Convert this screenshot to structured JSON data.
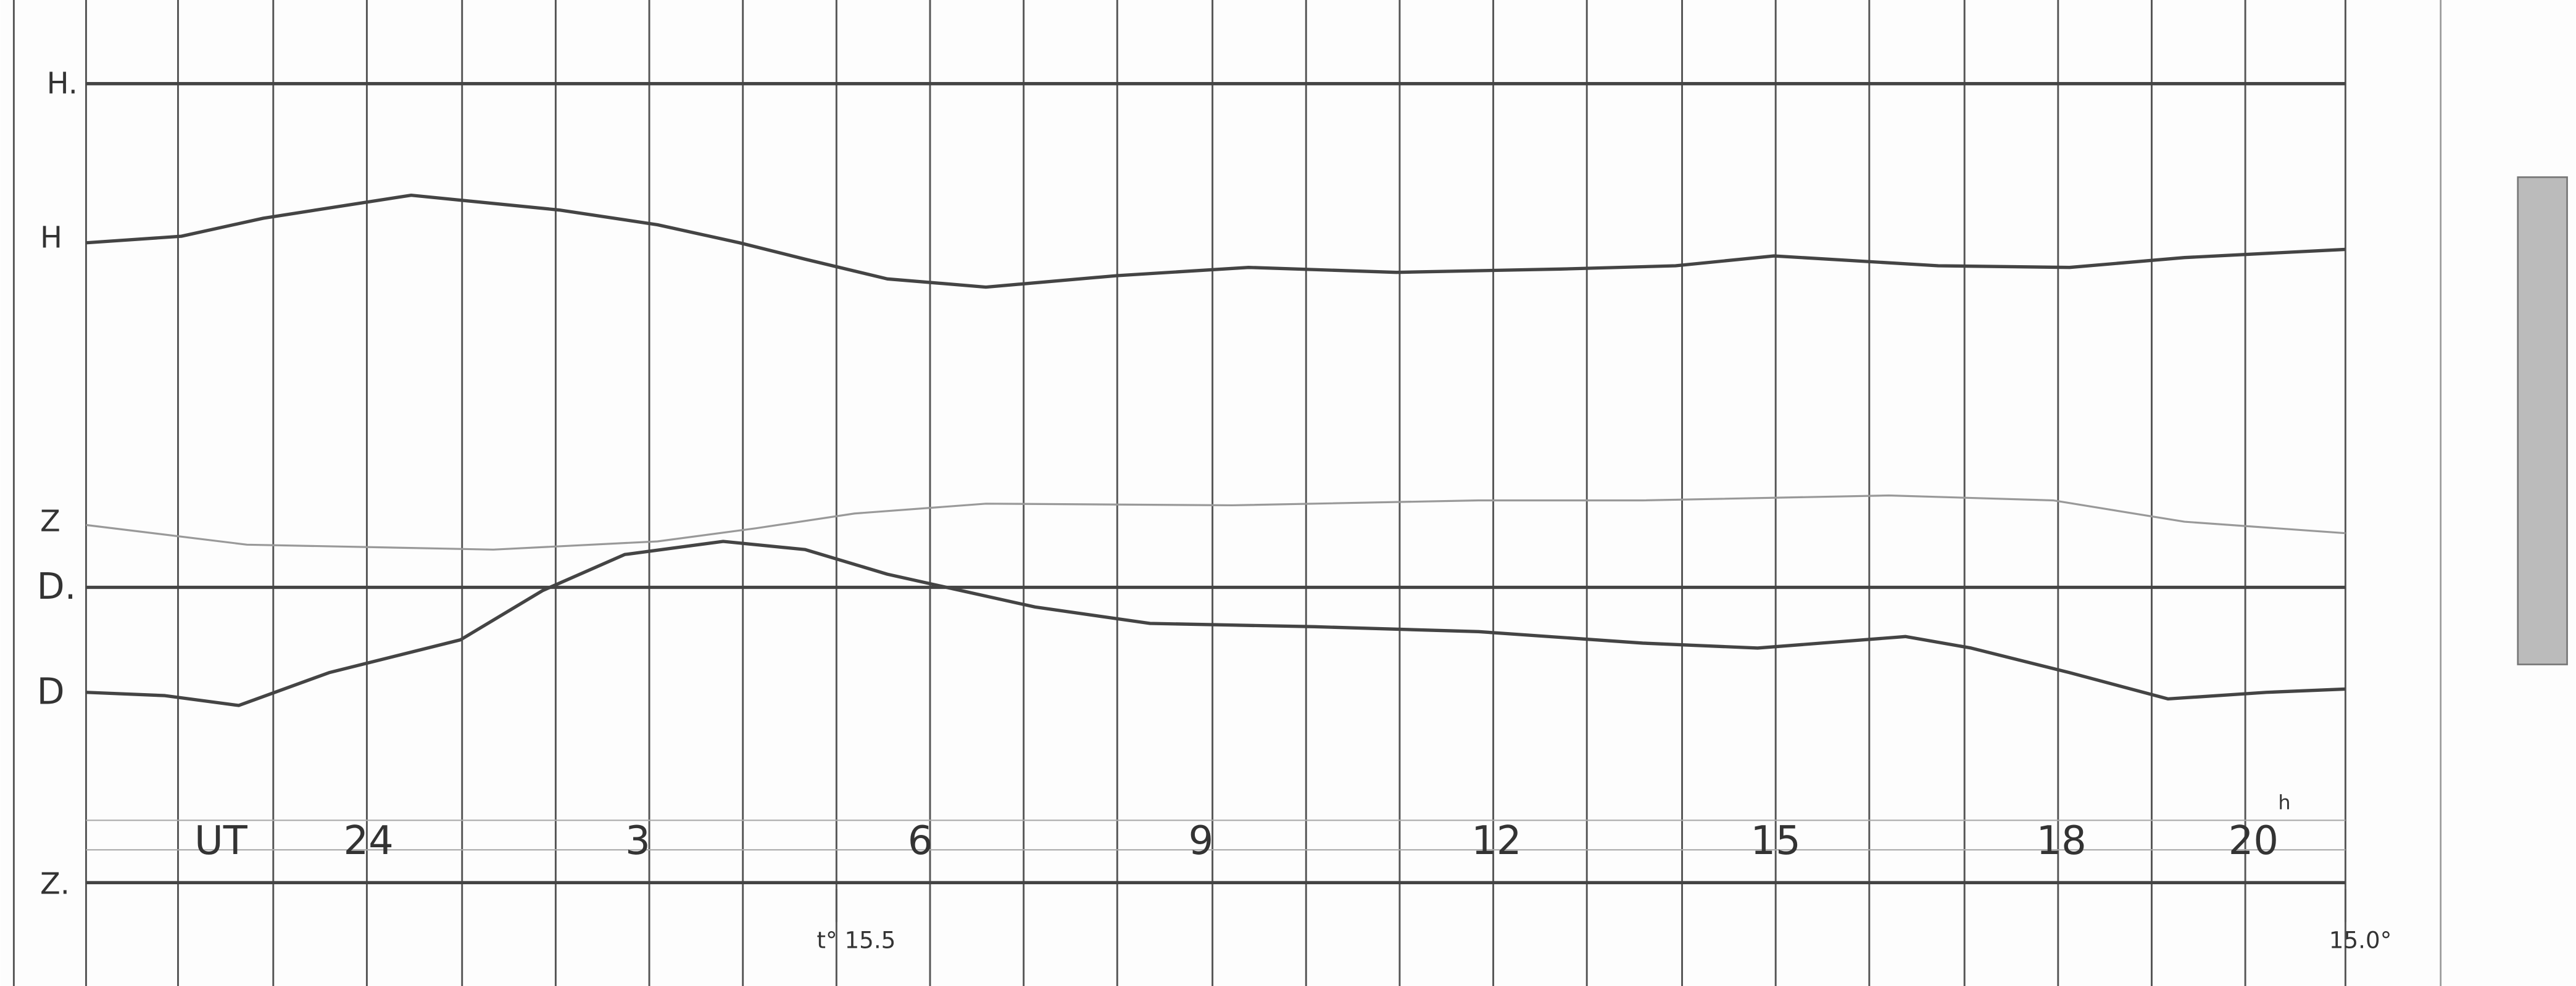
{
  "trace_labels": {
    "h_base": "H.",
    "h": "H",
    "z": "Z",
    "d_base": "D.",
    "d": "D",
    "z_base": "Z."
  },
  "time_axis": {
    "unit_prefix": "UT",
    "hours": [
      "24",
      "3",
      "6",
      "9",
      "12",
      "15",
      "18",
      "20"
    ],
    "hour_mark": "h"
  },
  "temperatures": {
    "start": "t° 15.5",
    "end": "15.0°"
  }
}
